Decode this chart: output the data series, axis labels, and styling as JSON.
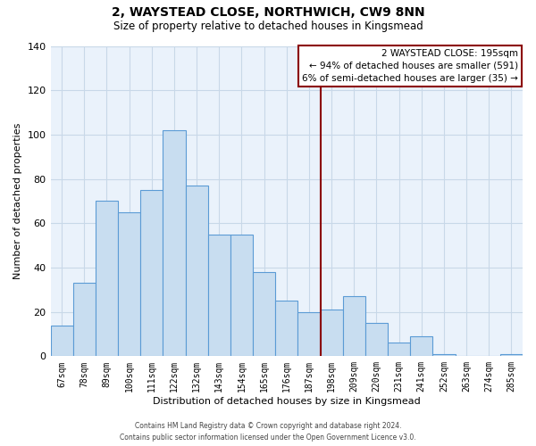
{
  "title": "2, WAYSTEAD CLOSE, NORTHWICH, CW9 8NN",
  "subtitle": "Size of property relative to detached houses in Kingsmead",
  "xlabel": "Distribution of detached houses by size in Kingsmead",
  "ylabel": "Number of detached properties",
  "categories": [
    "67sqm",
    "78sqm",
    "89sqm",
    "100sqm",
    "111sqm",
    "122sqm",
    "132sqm",
    "143sqm",
    "154sqm",
    "165sqm",
    "176sqm",
    "187sqm",
    "198sqm",
    "209sqm",
    "220sqm",
    "231sqm",
    "241sqm",
    "252sqm",
    "263sqm",
    "274sqm",
    "285sqm"
  ],
  "bar_heights": [
    14,
    33,
    70,
    65,
    75,
    102,
    77,
    55,
    55,
    38,
    25,
    20,
    21,
    27,
    15,
    6,
    9,
    1,
    0,
    0,
    1
  ],
  "bar_color": "#c8ddf0",
  "bar_edgecolor": "#5b9bd5",
  "ref_line_label": "2 WAYSTEAD CLOSE: 195sqm",
  "annotation_line1": "← 94% of detached houses are smaller (591)",
  "annotation_line2": "6% of semi-detached houses are larger (35) →",
  "ylim": [
    0,
    140
  ],
  "yticks": [
    0,
    20,
    40,
    60,
    80,
    100,
    120,
    140
  ],
  "footer_line1": "Contains HM Land Registry data © Crown copyright and database right 2024.",
  "footer_line2": "Contains public sector information licensed under the Open Government Licence v3.0.",
  "background_color": "#ffffff",
  "grid_color": "#c8d8e8"
}
